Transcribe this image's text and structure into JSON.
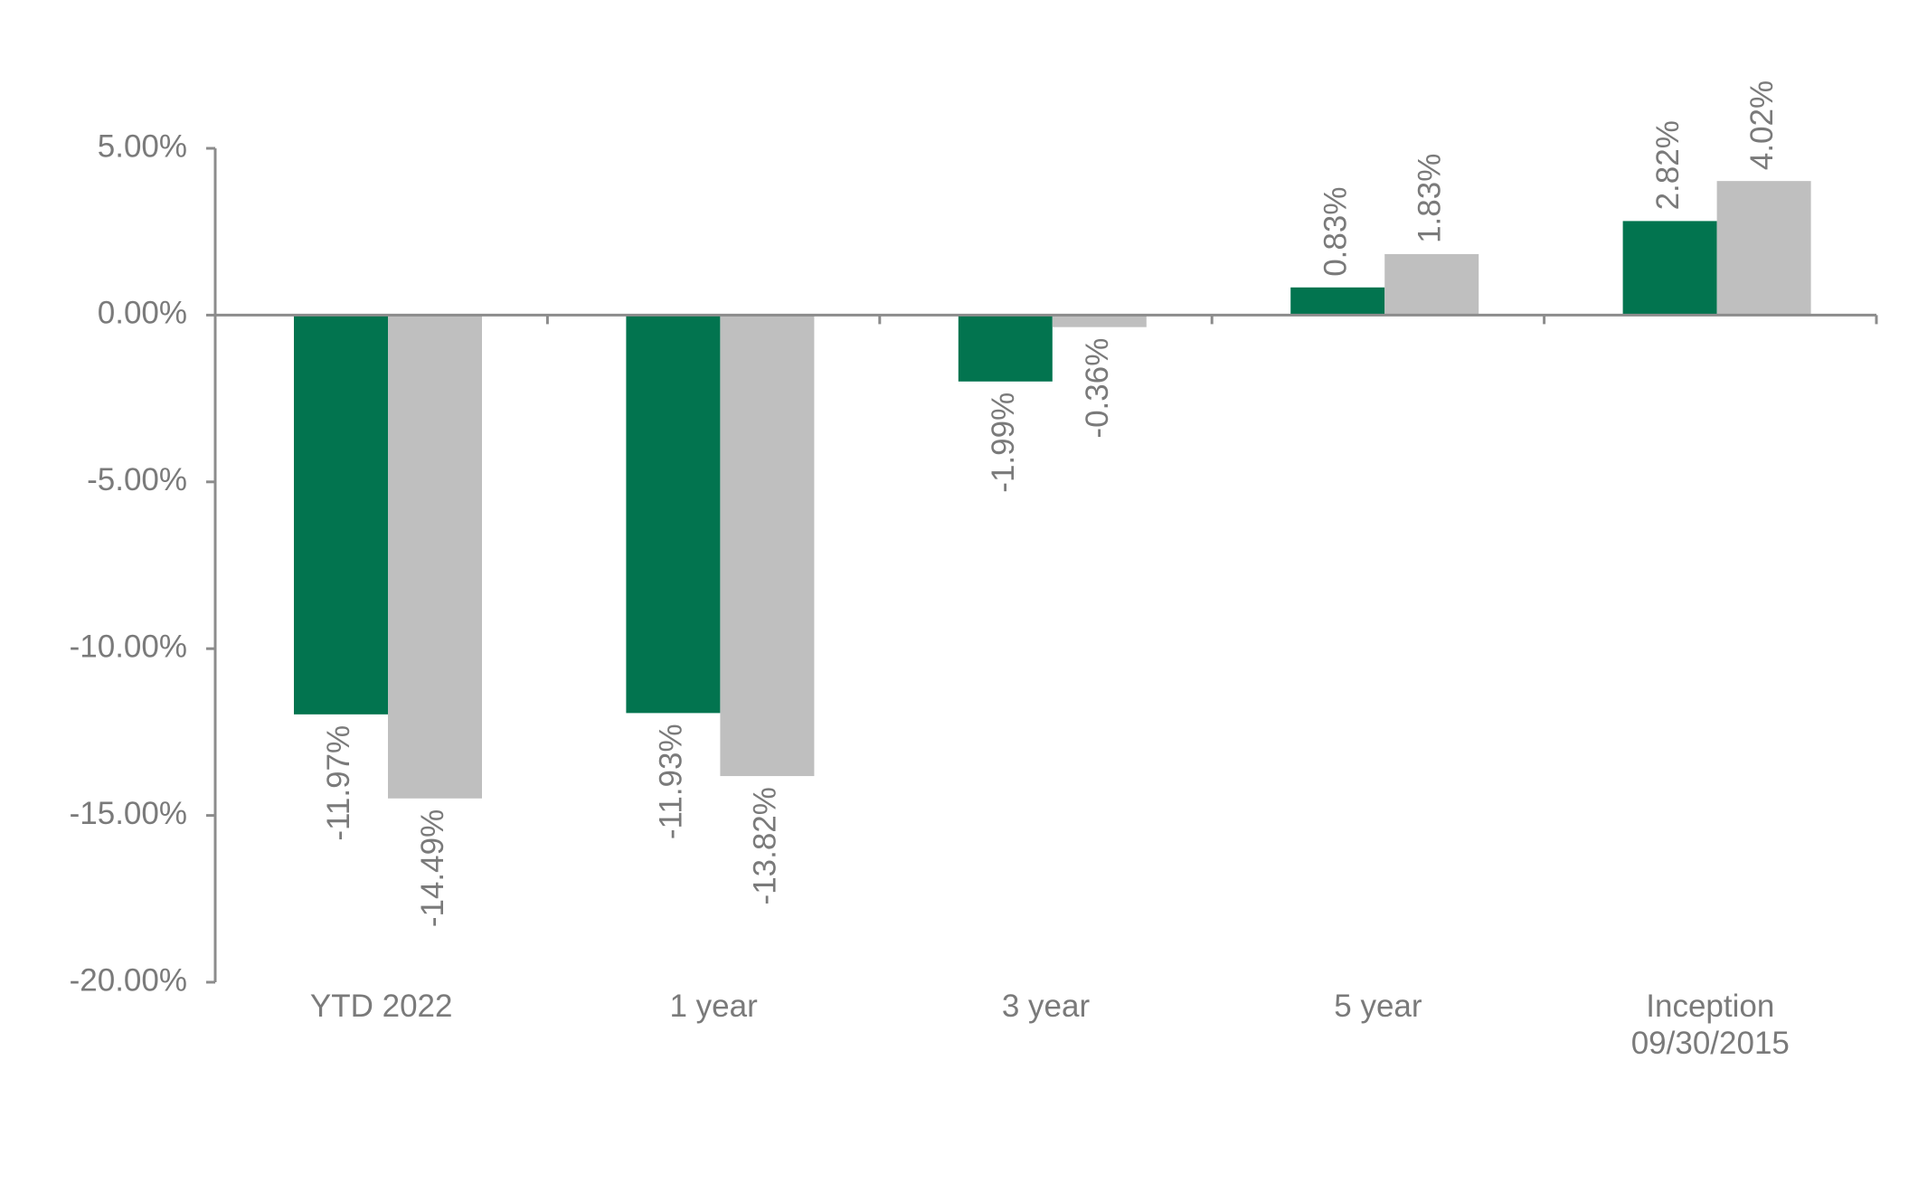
{
  "chart_data": {
    "type": "bar",
    "categories": [
      "YTD 2022",
      "1 year",
      "3 year",
      "5 year",
      "Inception\n09/30/2015"
    ],
    "series": [
      {
        "values": [
          -11.97,
          -11.93,
          -1.99,
          0.83,
          2.82
        ],
        "labels": [
          "-11.97%",
          "-11.93%",
          "-1.99%",
          "0.83%",
          "2.82%"
        ],
        "color": "#02744f"
      },
      {
        "values": [
          -14.49,
          -13.82,
          -0.36,
          1.83,
          4.02
        ],
        "labels": [
          "-14.49%",
          "-13.82%",
          "-0.36%",
          "1.83%",
          "4.02%"
        ],
        "color": "#bfbfbf"
      }
    ],
    "yticks": [
      5,
      0,
      -5,
      -10,
      -15,
      -20
    ],
    "ytick_labels": [
      "5.00%",
      "0.00%",
      "-5.00%",
      "-10.00%",
      "-15.00%",
      "-20.00%"
    ],
    "ylim": [
      -20,
      5
    ],
    "grid": false,
    "legend": "none",
    "data_label_orientation": "vertical"
  }
}
